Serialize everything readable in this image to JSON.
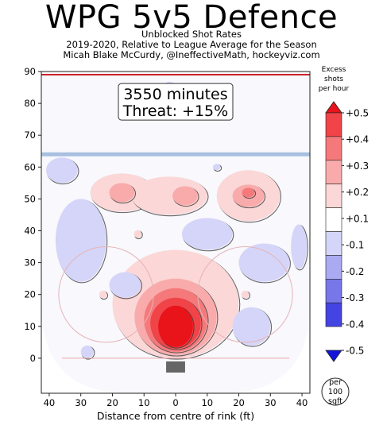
{
  "header": {
    "title": "WPG 5v5 Defence",
    "subtitle_lines": [
      "Unblocked Shot Rates",
      "2019-2020, Relative to League Average for the Season",
      "Micah Blake McCurdy, @IneffectiveMath, hockeyviz.com"
    ]
  },
  "chart_data": {
    "type": "heatmap",
    "title": "WPG 5v5 Defence",
    "xlabel": "Distance from centre of rink (ft)",
    "ylabel": "",
    "xlim": [
      -42.5,
      42.5
    ],
    "ylim": [
      -11,
      90
    ],
    "x_ticks": [
      -40,
      -30,
      -20,
      -10,
      0,
      10,
      20,
      30,
      40
    ],
    "x_tick_labels": [
      "40",
      "30",
      "20",
      "10",
      "0",
      "10",
      "20",
      "30",
      "40"
    ],
    "y_ticks": [
      0,
      10,
      20,
      30,
      40,
      50,
      60,
      70,
      80,
      90
    ],
    "y_tick_labels": [
      "0",
      "10",
      "20",
      "30",
      "40",
      "50",
      "60",
      "70",
      "80",
      "90"
    ],
    "annotation": {
      "minutes": "3550 minutes",
      "threat": "Threat: +15%"
    },
    "colorbar": {
      "title": [
        "Excess",
        "shots",
        "per hour"
      ],
      "labels": [
        "+0.5",
        "+0.4",
        "+0.3",
        "+0.2",
        "+0.1",
        "-0.1",
        "-0.2",
        "-0.3",
        "-0.4",
        "-0.5"
      ],
      "levels": [
        0.5,
        0.4,
        0.3,
        0.2,
        0.1,
        -0.1,
        -0.2,
        -0.3,
        -0.4,
        -0.5
      ],
      "unit_lines": [
        "per",
        "100",
        "sqft"
      ],
      "colors": [
        "#e8141a",
        "#f04449",
        "#f5797b",
        "#f9abac",
        "#fcd7d7",
        "#ffffff",
        "#d5d5f9",
        "#aaaaf2",
        "#7777ea",
        "#4444e2",
        "#1414db"
      ]
    },
    "regions": [
      {
        "sign": "positive",
        "level": 0.1,
        "x": -17,
        "y": 52,
        "rx": 10,
        "ry": 6
      },
      {
        "sign": "positive",
        "level": 0.1,
        "x": -2,
        "y": 51,
        "rx": 12,
        "ry": 6
      },
      {
        "sign": "positive",
        "level": 0.1,
        "x": 23,
        "y": 51,
        "rx": 10,
        "ry": 8
      },
      {
        "sign": "positive",
        "level": 0.2,
        "x": -17,
        "y": 52,
        "rx": 4,
        "ry": 3
      },
      {
        "sign": "positive",
        "level": 0.2,
        "x": 3,
        "y": 51,
        "rx": 4,
        "ry": 3
      },
      {
        "sign": "positive",
        "level": 0.2,
        "x": 23,
        "y": 51,
        "rx": 5,
        "ry": 3.5
      },
      {
        "sign": "positive",
        "level": 0.3,
        "x": 23,
        "y": 52,
        "rx": 2,
        "ry": 1.5
      },
      {
        "sign": "positive",
        "level": 0.1,
        "x": -12,
        "y": 39,
        "rx": 1.2,
        "ry": 1.2
      },
      {
        "sign": "positive",
        "level": 0.1,
        "x": -23,
        "y": 20,
        "rx": 1.2,
        "ry": 1.2
      },
      {
        "sign": "positive",
        "level": 0.1,
        "x": 22,
        "y": 20,
        "rx": 1.2,
        "ry": 1.2
      },
      {
        "sign": "positive",
        "level": 0.1,
        "x": 0,
        "y": 17,
        "rx": 20,
        "ry": 17
      },
      {
        "sign": "positive",
        "level": 0.2,
        "x": 0,
        "y": 13,
        "rx": 13,
        "ry": 12
      },
      {
        "sign": "positive",
        "level": 0.3,
        "x": 0,
        "y": 12,
        "rx": 10,
        "ry": 10
      },
      {
        "sign": "positive",
        "level": 0.4,
        "x": 0,
        "y": 11,
        "rx": 8,
        "ry": 8
      },
      {
        "sign": "positive",
        "level": 0.5,
        "x": 0,
        "y": 10,
        "rx": 5.5,
        "ry": 6.5
      },
      {
        "sign": "negative",
        "level": -0.1,
        "x": -30,
        "y": 37,
        "rx": 8,
        "ry": 13
      },
      {
        "sign": "negative",
        "level": -0.1,
        "x": 10,
        "y": 39,
        "rx": 8,
        "ry": 5
      },
      {
        "sign": "negative",
        "level": -0.1,
        "x": -36,
        "y": 59,
        "rx": 5,
        "ry": 4
      },
      {
        "sign": "negative",
        "level": -0.1,
        "x": -2,
        "y": 85,
        "rx": 1.8,
        "ry": 1.8
      },
      {
        "sign": "negative",
        "level": -0.1,
        "x": 13,
        "y": 60,
        "rx": 1.2,
        "ry": 1
      },
      {
        "sign": "negative",
        "level": -0.1,
        "x": 28,
        "y": 30,
        "rx": 8,
        "ry": 6
      },
      {
        "sign": "negative",
        "level": -0.1,
        "x": 39,
        "y": 35,
        "rx": 2.5,
        "ry": 7
      },
      {
        "sign": "negative",
        "level": -0.1,
        "x": 24,
        "y": 10,
        "rx": 6,
        "ry": 6
      },
      {
        "sign": "negative",
        "level": -0.1,
        "x": -28,
        "y": 2,
        "rx": 2,
        "ry": 2
      },
      {
        "sign": "negative",
        "level": -0.1,
        "x": -16,
        "y": 23,
        "rx": 5,
        "ry": 4
      }
    ]
  }
}
